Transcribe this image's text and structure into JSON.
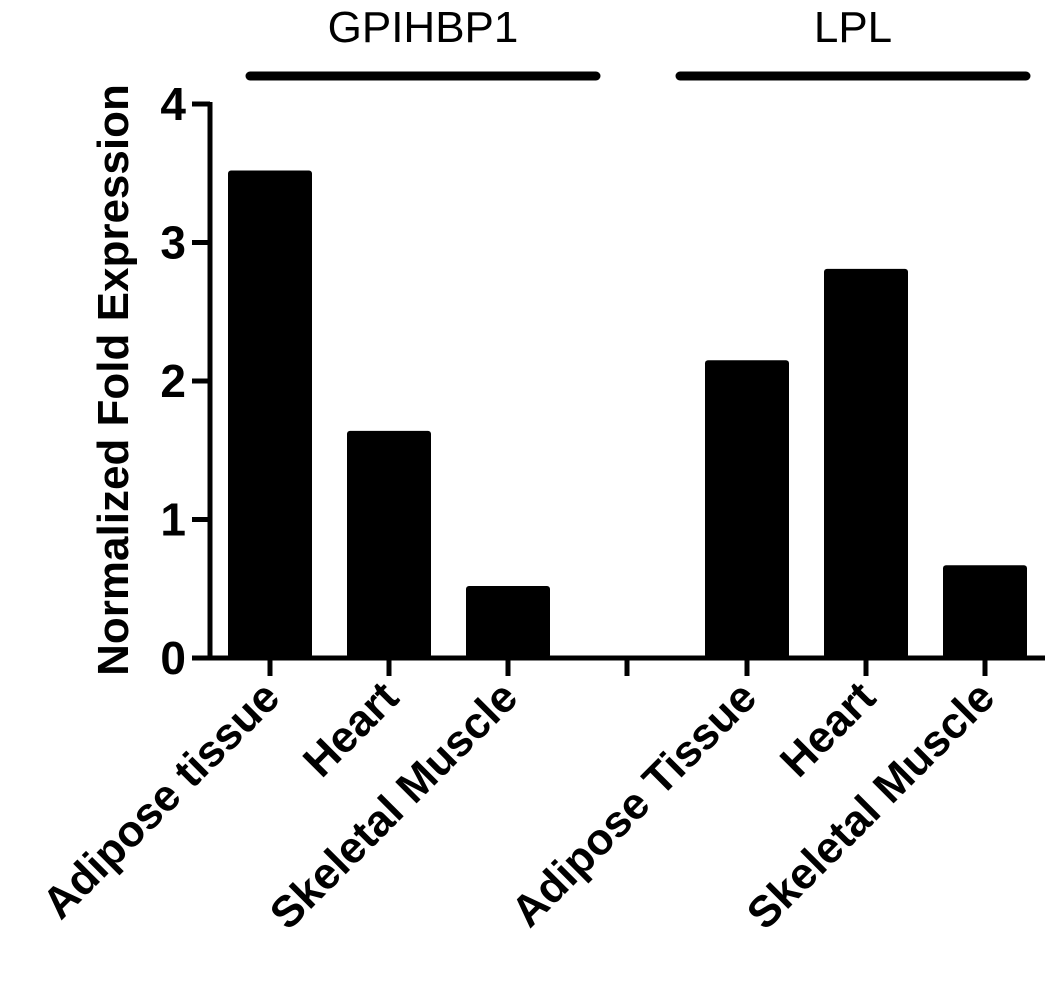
{
  "chart_data": {
    "type": "bar",
    "title": "",
    "xlabel": "",
    "ylabel": "Normalized Fold Expression",
    "ylim": [
      0,
      4
    ],
    "yticks": [
      0,
      1,
      2,
      3,
      4
    ],
    "grid": false,
    "legend": "none",
    "bar_color": "#000000",
    "groups": [
      {
        "name": "GPIHBP1",
        "categories": [
          "Adipose tissue",
          "Heart",
          "Skeletal Muscle"
        ],
        "values": [
          3.52,
          1.64,
          0.52
        ]
      },
      {
        "name": "LPL",
        "categories": [
          "Adipose Tissue",
          "Heart",
          "Skeletal Muscle"
        ],
        "values": [
          2.15,
          2.81,
          0.67
        ]
      }
    ]
  }
}
